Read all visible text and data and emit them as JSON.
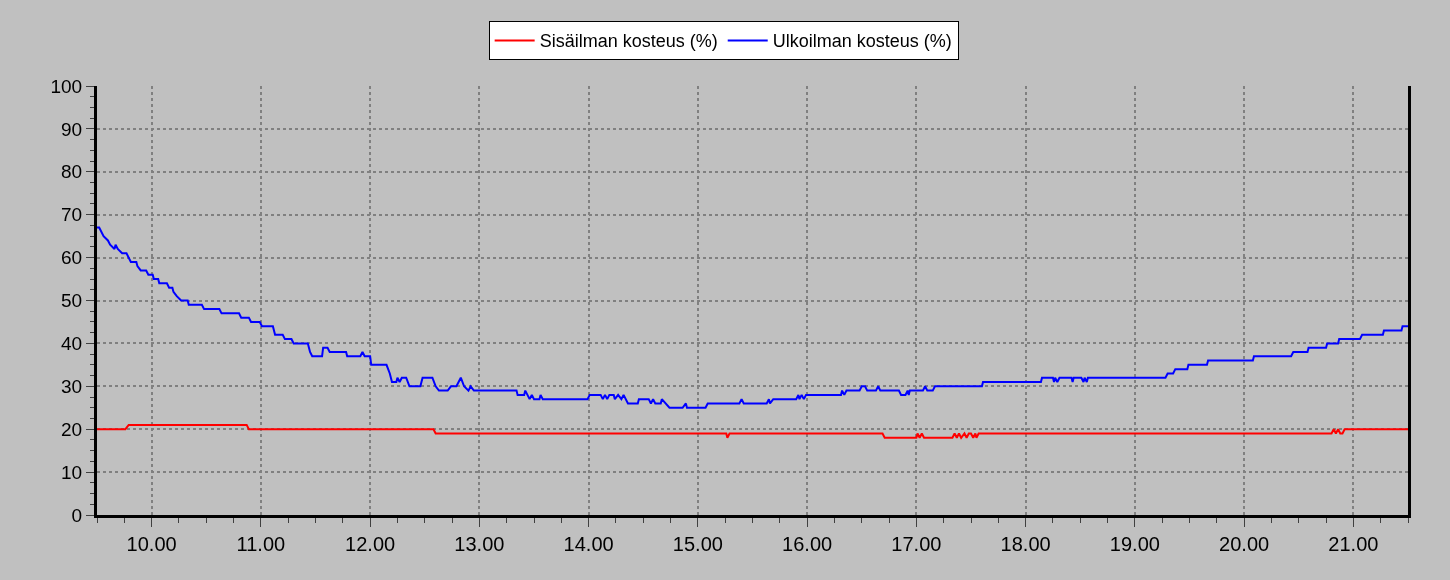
{
  "chart_data": {
    "type": "line",
    "series": [
      {
        "name": "Sisäilman kosteus (%)",
        "color": "#ff0000",
        "x": [
          9.5,
          9.76,
          9.79,
          10.87,
          10.89,
          12.58,
          12.6,
          15.26,
          15.27,
          15.29,
          16.69,
          16.71,
          17.0,
          17.01,
          17.03,
          17.05,
          17.07,
          17.33,
          17.35,
          17.37,
          17.39,
          17.41,
          17.44,
          17.46,
          17.48,
          17.5,
          17.52,
          17.54,
          17.55,
          17.57,
          20.8,
          20.82,
          20.84,
          20.86,
          20.88,
          20.9,
          20.92,
          21.5
        ],
        "values": [
          20,
          20,
          21,
          21,
          20,
          20,
          19,
          19,
          18,
          19,
          19,
          18,
          18,
          19,
          18,
          19,
          18,
          18,
          19,
          18,
          19,
          18,
          19,
          18,
          19,
          19,
          18,
          19,
          18,
          19,
          19,
          20,
          19,
          20,
          19,
          19,
          20,
          20
        ]
      },
      {
        "name": "Ulkoilman kosteus (%)",
        "color": "#0000ff",
        "x": [
          9.5,
          9.52,
          9.56,
          9.6,
          9.62,
          9.66,
          9.67,
          9.69,
          9.73,
          9.77,
          9.81,
          9.86,
          9.87,
          9.9,
          9.95,
          9.97,
          10.01,
          10.02,
          10.06,
          10.07,
          10.14,
          10.16,
          10.19,
          10.2,
          10.23,
          10.27,
          10.33,
          10.34,
          10.46,
          10.48,
          10.62,
          10.64,
          10.8,
          10.82,
          10.89,
          10.91,
          10.99,
          11.01,
          11.11,
          11.13,
          11.2,
          11.22,
          11.28,
          11.3,
          11.43,
          11.45,
          11.47,
          11.56,
          11.57,
          11.61,
          11.63,
          11.78,
          11.79,
          11.91,
          11.93,
          11.95,
          12.0,
          12.01,
          12.15,
          12.18,
          12.2,
          12.24,
          12.25,
          12.27,
          12.29,
          12.33,
          12.36,
          12.46,
          12.47,
          12.48,
          12.57,
          12.6,
          12.63,
          12.71,
          12.74,
          12.79,
          12.83,
          12.86,
          12.9,
          12.92,
          12.95,
          13.34,
          13.35,
          13.41,
          13.42,
          13.46,
          13.48,
          13.5,
          13.55,
          13.56,
          13.58,
          13.99,
          14.01,
          14.11,
          14.13,
          14.15,
          14.17,
          14.19,
          14.23,
          14.24,
          14.27,
          14.3,
          14.32,
          14.36,
          14.45,
          14.46,
          14.55,
          14.57,
          14.59,
          14.61,
          14.66,
          14.67,
          14.74,
          14.86,
          14.89,
          14.9,
          15.07,
          15.09,
          15.38,
          15.4,
          15.42,
          15.63,
          15.65,
          15.66,
          15.69,
          15.9,
          15.92,
          15.93,
          15.95,
          15.97,
          15.99,
          16.31,
          16.32,
          16.34,
          16.36,
          16.48,
          16.5,
          16.53,
          16.55,
          16.63,
          16.65,
          16.67,
          16.84,
          16.86,
          16.9,
          16.92,
          16.93,
          16.94,
          17.06,
          17.08,
          17.1,
          17.15,
          17.17,
          17.6,
          17.61,
          18.14,
          18.15,
          18.25,
          18.26,
          18.27,
          18.29,
          18.31,
          18.42,
          18.43,
          18.44,
          18.51,
          18.53,
          18.54,
          18.56,
          18.57,
          19.28,
          19.3,
          19.35,
          19.37,
          19.48,
          19.49,
          19.66,
          19.67,
          20.08,
          20.09,
          20.43,
          20.45,
          20.58,
          20.59,
          20.75,
          20.76,
          20.86,
          20.87,
          21.06,
          21.08,
          21.27,
          21.28,
          21.44,
          21.45,
          21.5
        ],
        "values": [
          67,
          67,
          65,
          64,
          63,
          62,
          63,
          62,
          61,
          61,
          59,
          59,
          58,
          57,
          57,
          56,
          56,
          55,
          55,
          54,
          54,
          53,
          53,
          52,
          51,
          50,
          50,
          49,
          49,
          48,
          48,
          47,
          47,
          46,
          46,
          45,
          45,
          44,
          44,
          42,
          42,
          41,
          41,
          40,
          40,
          38,
          37,
          37,
          39,
          39,
          38,
          38,
          37,
          37,
          38,
          37,
          37,
          35,
          35,
          33,
          31,
          31,
          32,
          31,
          32,
          32,
          30,
          30,
          31,
          32,
          32,
          30,
          29,
          29,
          30,
          30,
          32,
          30,
          29,
          30,
          29,
          29,
          28,
          28,
          29,
          27,
          28,
          27,
          27,
          28,
          27,
          27,
          28,
          28,
          27,
          28,
          27,
          28,
          28,
          27,
          28,
          27,
          28,
          26,
          26,
          27,
          27,
          26,
          27,
          26,
          26,
          27,
          25,
          25,
          26,
          25,
          25,
          26,
          26,
          27,
          26,
          26,
          27,
          26,
          27,
          27,
          28,
          27,
          28,
          27,
          28,
          28,
          29,
          28,
          29,
          29,
          30,
          30,
          29,
          29,
          30,
          29,
          29,
          28,
          28,
          29,
          28,
          29,
          29,
          30,
          29,
          29,
          30,
          30,
          31,
          31,
          32,
          32,
          31,
          32,
          31,
          32,
          32,
          31,
          32,
          32,
          31,
          32,
          31,
          32,
          32,
          33,
          33,
          34,
          34,
          35,
          35,
          36,
          36,
          37,
          37,
          38,
          38,
          39,
          39,
          40,
          40,
          41,
          41,
          42,
          42,
          43,
          43,
          44,
          44
        ]
      }
    ],
    "xlim": [
      9.5,
      21.5
    ],
    "xticks": [
      {
        "value": 10,
        "label": "10.00"
      },
      {
        "value": 11,
        "label": "11.00"
      },
      {
        "value": 12,
        "label": "12.00"
      },
      {
        "value": 13,
        "label": "13.00"
      },
      {
        "value": 14,
        "label": "14.00"
      },
      {
        "value": 15,
        "label": "15.00"
      },
      {
        "value": 16,
        "label": "16.00"
      },
      {
        "value": 17,
        "label": "17.00"
      },
      {
        "value": 18,
        "label": "18.00"
      },
      {
        "value": 19,
        "label": "19.00"
      },
      {
        "value": 20,
        "label": "20.00"
      },
      {
        "value": 21,
        "label": "21.00"
      }
    ],
    "ylim": [
      0,
      100
    ],
    "yticks": [
      0,
      10,
      20,
      30,
      40,
      50,
      60,
      70,
      80,
      90,
      100
    ],
    "grid": true,
    "legend": "top",
    "line_style": "solid"
  }
}
